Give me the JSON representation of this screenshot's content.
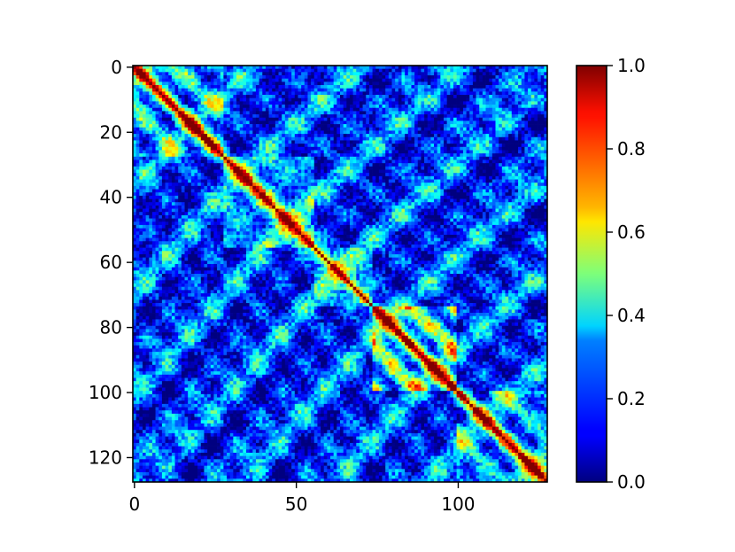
{
  "chart_data": {
    "type": "heatmap",
    "title": "",
    "xlabel": "",
    "ylabel": "",
    "colormap": "jet",
    "matrix_size": 128,
    "diagonal_value": 1.0,
    "xlim": [
      0,
      127
    ],
    "ylim": [
      127,
      0
    ],
    "xticks": [
      0,
      50,
      100
    ],
    "yticks": [
      0,
      20,
      40,
      60,
      80,
      100,
      120
    ],
    "colorbar": {
      "range": [
        0.0,
        1.0
      ],
      "ticks": [
        0.0,
        0.2,
        0.4,
        0.6,
        0.8,
        1.0
      ],
      "tick_labels": [
        "0.0",
        "0.2",
        "0.4",
        "0.6",
        "0.8",
        "1.0"
      ]
    },
    "grid": false,
    "blocks": [
      {
        "from": 0,
        "to": 28,
        "level": 0.45
      },
      {
        "from": 28,
        "to": 56,
        "level": 0.4
      },
      {
        "from": 56,
        "to": 74,
        "level": 0.35
      },
      {
        "from": 74,
        "to": 100,
        "level": 0.6
      },
      {
        "from": 100,
        "to": 128,
        "level": 0.4
      }
    ],
    "background_level": 0.18
  }
}
